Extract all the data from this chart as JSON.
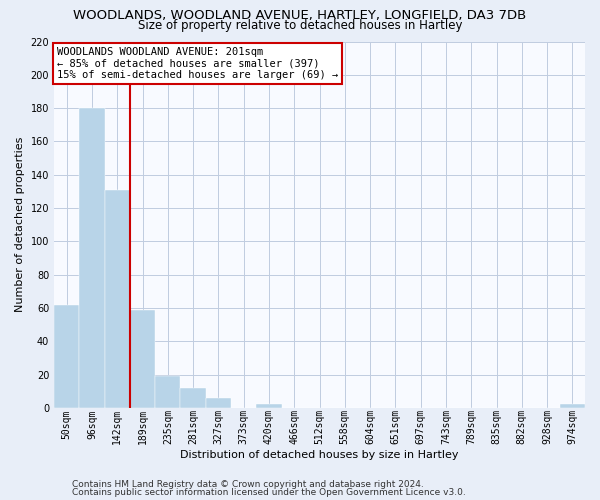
{
  "title": "WOODLANDS, WOODLAND AVENUE, HARTLEY, LONGFIELD, DA3 7DB",
  "subtitle": "Size of property relative to detached houses in Hartley",
  "xlabel": "Distribution of detached houses by size in Hartley",
  "ylabel": "Number of detached properties",
  "bar_labels": [
    "50sqm",
    "96sqm",
    "142sqm",
    "189sqm",
    "235sqm",
    "281sqm",
    "327sqm",
    "373sqm",
    "420sqm",
    "466sqm",
    "512sqm",
    "558sqm",
    "604sqm",
    "651sqm",
    "697sqm",
    "743sqm",
    "789sqm",
    "835sqm",
    "882sqm",
    "928sqm",
    "974sqm"
  ],
  "bar_values": [
    62,
    180,
    131,
    59,
    19,
    12,
    6,
    0,
    2,
    0,
    0,
    0,
    0,
    0,
    0,
    0,
    0,
    0,
    0,
    0,
    2
  ],
  "bar_color": "#b8d4e8",
  "vline_color": "#cc0000",
  "vline_position": 2.5,
  "ylim": [
    0,
    220
  ],
  "yticks": [
    0,
    20,
    40,
    60,
    80,
    100,
    120,
    140,
    160,
    180,
    200,
    220
  ],
  "annotation_line1": "WOODLANDS WOODLAND AVENUE: 201sqm",
  "annotation_line2": "← 85% of detached houses are smaller (397)",
  "annotation_line3": "15% of semi-detached houses are larger (69) →",
  "footer1": "Contains HM Land Registry data © Crown copyright and database right 2024.",
  "footer2": "Contains public sector information licensed under the Open Government Licence v3.0.",
  "background_color": "#e8eef8",
  "plot_bg_color": "#f8faff",
  "grid_color": "#c0cce0",
  "title_fontsize": 9.5,
  "subtitle_fontsize": 8.5,
  "tick_fontsize": 7,
  "label_fontsize": 8,
  "annotation_fontsize": 7.5,
  "footer_fontsize": 6.5
}
